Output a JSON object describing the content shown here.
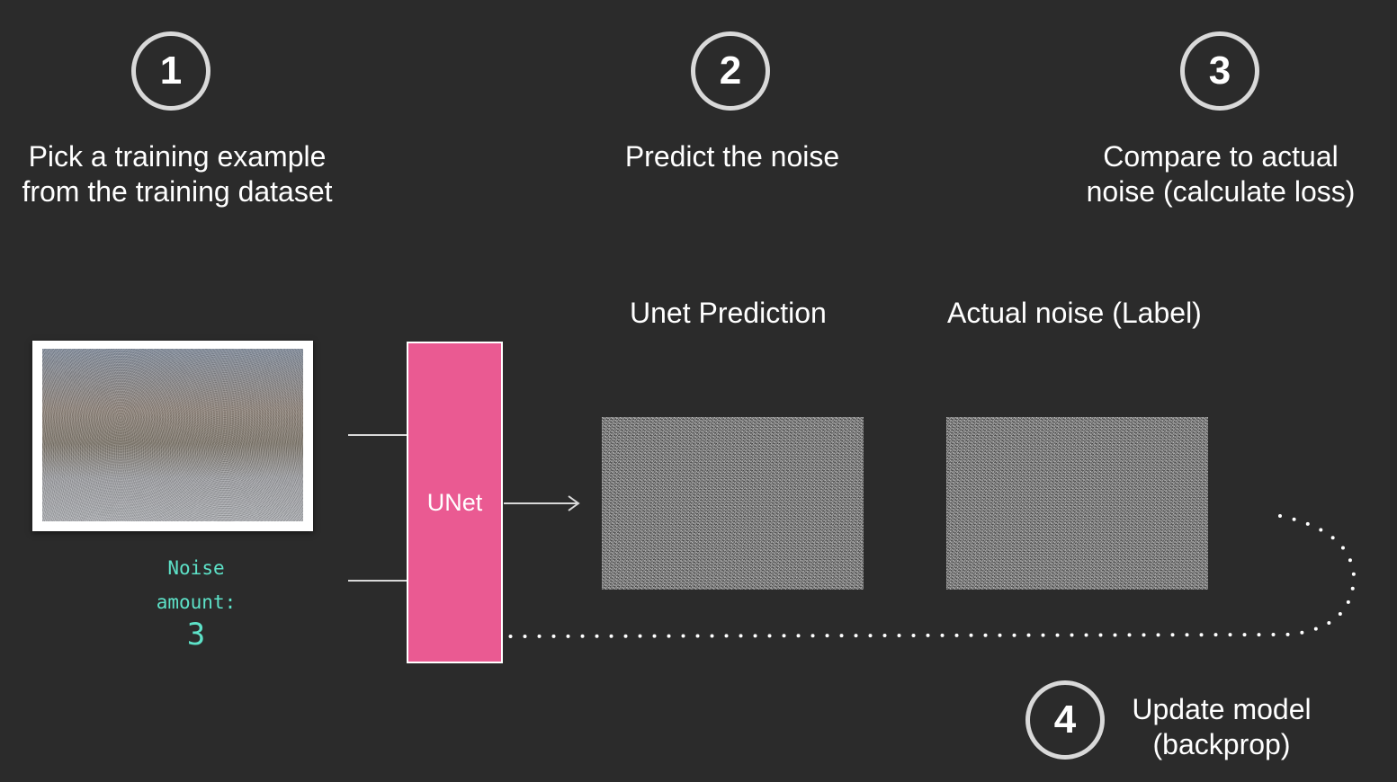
{
  "steps": [
    {
      "number": "1",
      "text_line1": "Pick a training example",
      "text_line2": "from the training dataset"
    },
    {
      "number": "2",
      "text_line1": "Predict the noise",
      "text_line2": ""
    },
    {
      "number": "3",
      "text_line1": "Compare to actual",
      "text_line2": "noise (calculate loss)"
    },
    {
      "number": "4",
      "text_line1": "Update model",
      "text_line2": "(backprop)"
    }
  ],
  "training_example": {
    "noise_label_line1": "Noise",
    "noise_label_line2": "amount:",
    "noise_amount": "3"
  },
  "model": {
    "label": "UNet"
  },
  "outputs": {
    "prediction_label": "Unet Prediction",
    "actual_label": "Actual noise (Label)"
  },
  "colors": {
    "background": "#2b2b2b",
    "unet": "#ea5a92",
    "noise_text": "#5de2c8",
    "circle_border": "#d9d9d9"
  },
  "icons": [
    "arrow-right-icon",
    "arrow-left-icon",
    "dotted-backprop-path"
  ]
}
